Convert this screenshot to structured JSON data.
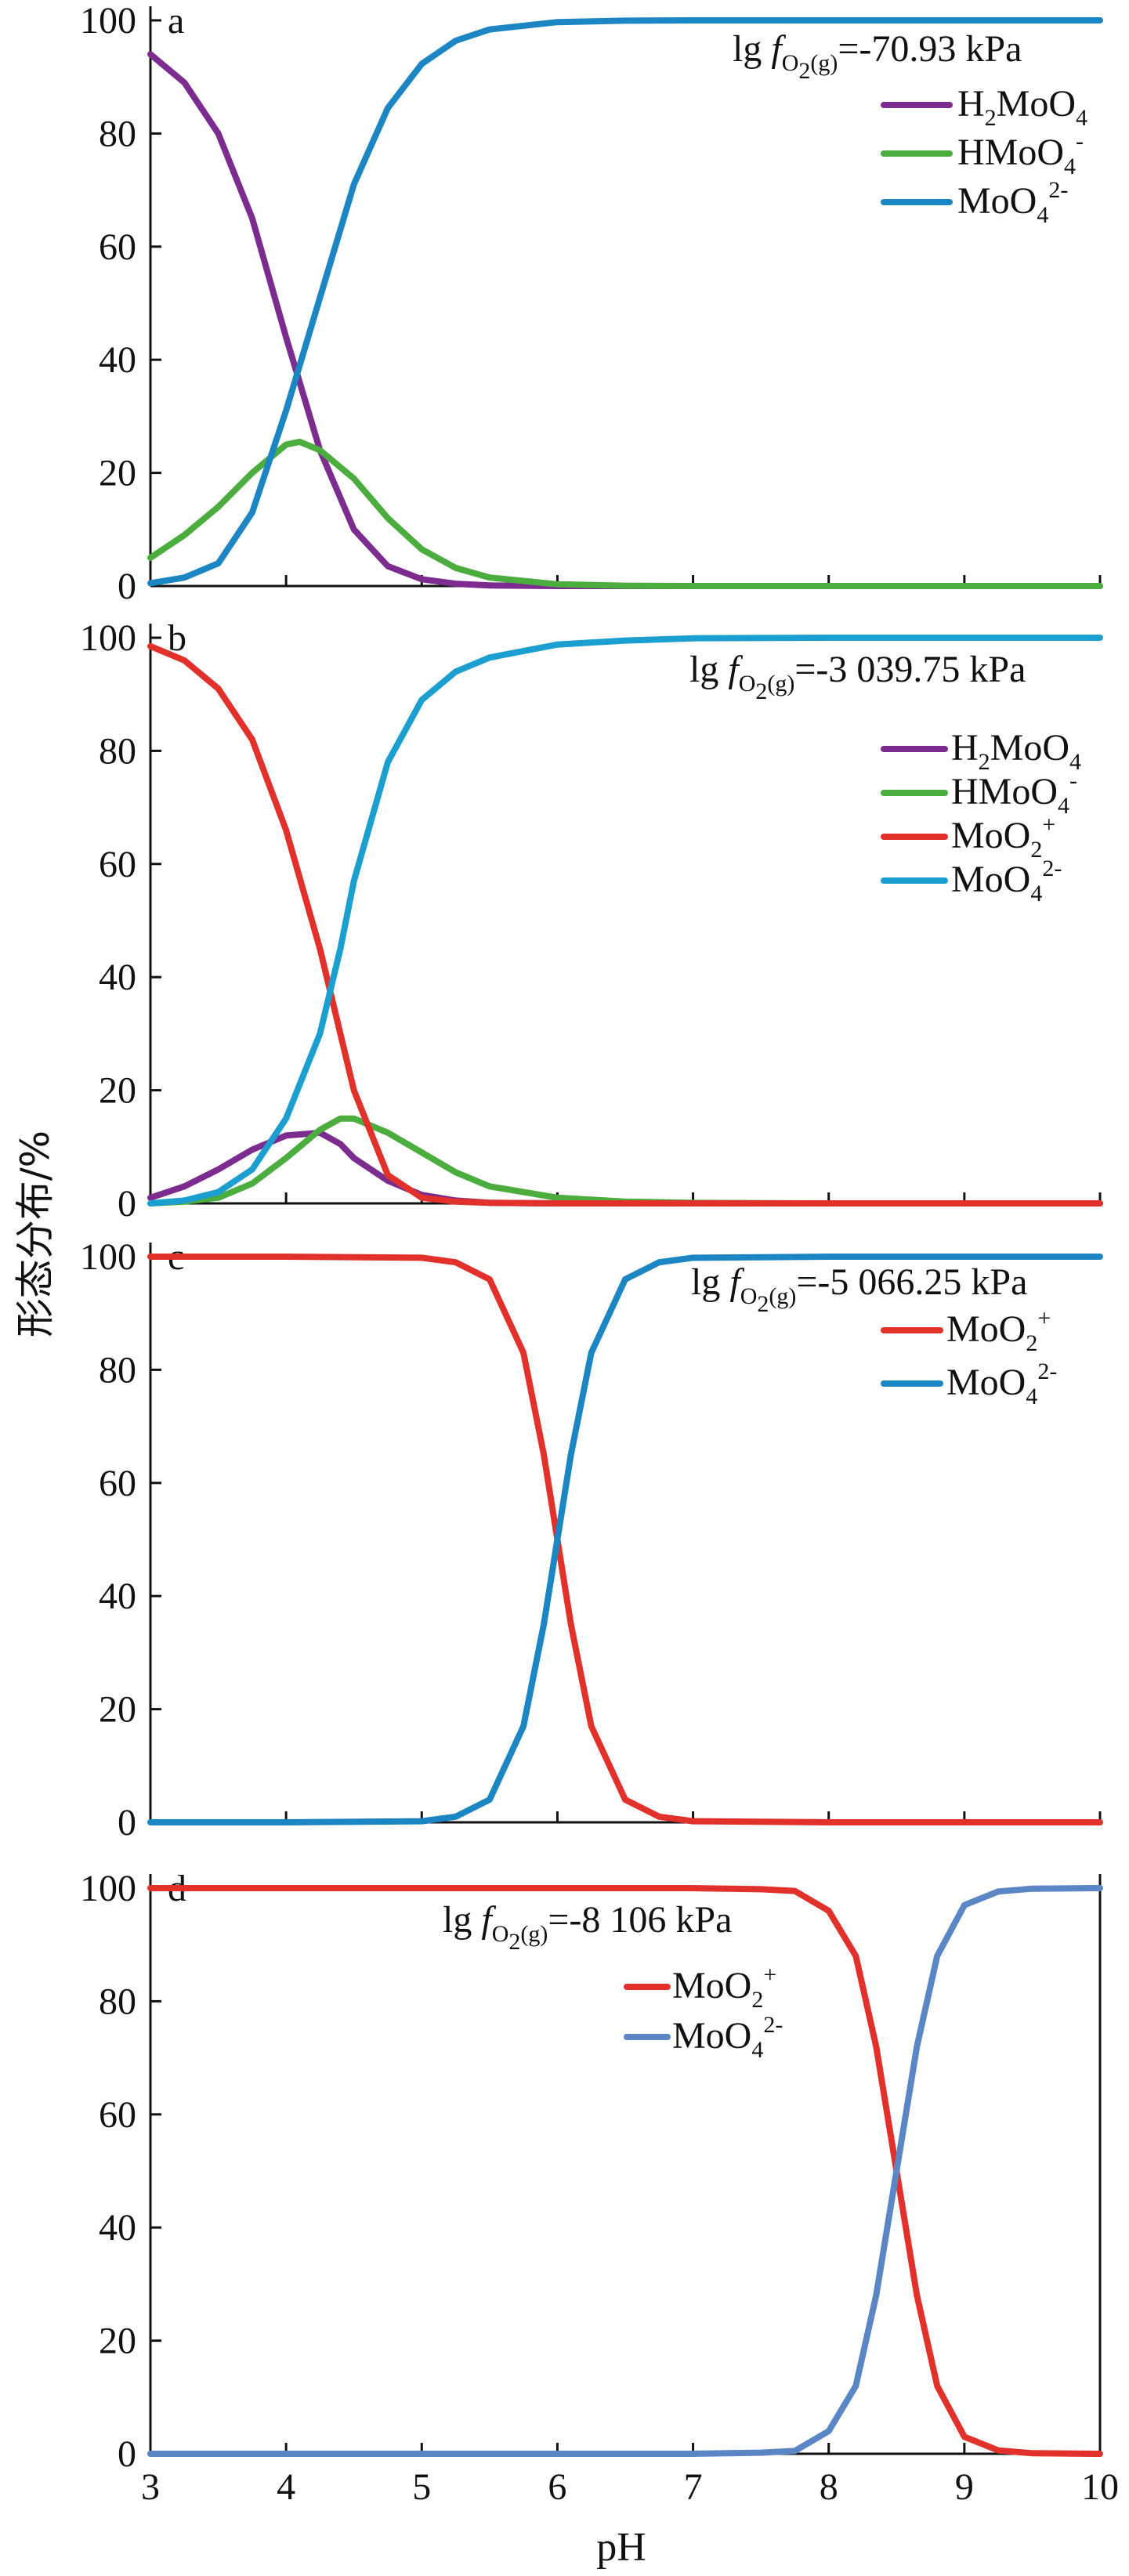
{
  "figure": {
    "ylabel": "形态分布/%",
    "xlabel": "pH"
  },
  "chart_data": [
    {
      "type": "line",
      "panel": "a",
      "annotation": {
        "prefix": "lg ",
        "f": "f",
        "sub1": "O",
        "sub2": "2",
        "sub3": "(g)",
        "value": "=-70.93 kPa"
      },
      "xlim": [
        3,
        10
      ],
      "ylim": [
        0,
        100
      ],
      "xticks": [
        "3",
        "4",
        "5",
        "6",
        "7",
        "8",
        "9",
        "10"
      ],
      "yticks": [
        "0",
        "20",
        "40",
        "60",
        "80",
        "100"
      ],
      "show_x_ticklabels": false,
      "legend_position": "top-right",
      "x": [
        3.0,
        3.25,
        3.5,
        3.75,
        4.0,
        4.1,
        4.25,
        4.5,
        4.75,
        5.0,
        5.25,
        5.5,
        6.0,
        6.5,
        7.0,
        7.5,
        8.0,
        9.0,
        10.0
      ],
      "series": [
        {
          "name_parts": [
            "H",
            "2",
            "MoO",
            "4",
            ""
          ],
          "color": "#7b2c8e",
          "values": [
            94,
            89,
            80,
            65,
            44,
            36,
            24,
            10,
            3.5,
            1.2,
            0.4,
            0.1,
            0,
            0,
            0,
            0,
            0,
            0,
            0
          ]
        },
        {
          "name_parts": [
            "HMoO",
            "4",
            "-"
          ],
          "color": "#4aad3e",
          "values": [
            5,
            9,
            14,
            20,
            25,
            25.5,
            24,
            19,
            12,
            6.5,
            3.2,
            1.5,
            0.3,
            0.05,
            0,
            0,
            0,
            0,
            0
          ]
        },
        {
          "name_parts": [
            "MoO",
            "4",
            "2-"
          ],
          "color": "#1b86c3",
          "values": [
            0.5,
            1.5,
            4,
            13,
            31,
            39,
            51,
            71,
            84.5,
            92.3,
            96.4,
            98.4,
            99.7,
            99.95,
            100,
            100,
            100,
            100,
            100
          ]
        }
      ]
    },
    {
      "type": "line",
      "panel": "b",
      "annotation": {
        "prefix": "lg ",
        "f": "f",
        "sub1": "O",
        "sub2": "2",
        "sub3": "(g)",
        "value": "=-3 039.75 kPa"
      },
      "xlim": [
        3,
        10
      ],
      "ylim": [
        0,
        100
      ],
      "xticks": [
        "3",
        "4",
        "5",
        "6",
        "7",
        "8",
        "9",
        "10"
      ],
      "yticks": [
        "0",
        "20",
        "40",
        "60",
        "80",
        "100"
      ],
      "show_x_ticklabels": false,
      "legend_position": "right",
      "x": [
        3.0,
        3.25,
        3.5,
        3.75,
        4.0,
        4.25,
        4.4,
        4.5,
        4.75,
        5.0,
        5.25,
        5.5,
        6.0,
        6.5,
        7.0,
        8.0,
        9.0,
        10.0
      ],
      "series": [
        {
          "name_parts": [
            "H",
            "2",
            "MoO",
            "4",
            ""
          ],
          "color": "#7b2c8e",
          "values": [
            1,
            3,
            6,
            9.5,
            12,
            12.5,
            10.5,
            8,
            4,
            1.5,
            0.5,
            0.1,
            0,
            0,
            0,
            0,
            0,
            0
          ]
        },
        {
          "name_parts": [
            "HMoO",
            "4",
            "-"
          ],
          "color": "#4aad3e",
          "values": [
            0,
            0.3,
            1,
            3.5,
            8,
            13,
            15,
            15,
            12.5,
            9,
            5.5,
            3,
            1,
            0.3,
            0.1,
            0,
            0,
            0
          ]
        },
        {
          "name_parts": [
            "MoO",
            "2",
            "+"
          ],
          "color": "#e2302b",
          "values": [
            98.5,
            96,
            91,
            82,
            66,
            45,
            30,
            20,
            5,
            1,
            0.3,
            0.1,
            0,
            0,
            0,
            0,
            0,
            0
          ]
        },
        {
          "name_parts": [
            "MoO",
            "4",
            "2-"
          ],
          "color": "#1b9fd0",
          "values": [
            0,
            0.5,
            2,
            6,
            15,
            30,
            45,
            57,
            78,
            89,
            94,
            96.5,
            98.8,
            99.5,
            99.9,
            100,
            100,
            100
          ]
        }
      ]
    },
    {
      "type": "line",
      "panel": "c",
      "annotation": {
        "prefix": "lg ",
        "f": "f",
        "sub1": "O",
        "sub2": "2",
        "sub3": "(g)",
        "value": "=-5 066.25 kPa"
      },
      "xlim": [
        3,
        10
      ],
      "ylim": [
        0,
        100
      ],
      "xticks": [
        "3",
        "4",
        "5",
        "6",
        "7",
        "8",
        "9",
        "10"
      ],
      "yticks": [
        "0",
        "20",
        "40",
        "60",
        "80",
        "100"
      ],
      "show_x_ticklabels": false,
      "legend_position": "top-right",
      "x": [
        3.0,
        4.0,
        5.0,
        5.25,
        5.5,
        5.75,
        5.9,
        6.0,
        6.1,
        6.25,
        6.5,
        6.75,
        7.0,
        8.0,
        9.0,
        10.0
      ],
      "series": [
        {
          "name_parts": [
            "MoO",
            "2",
            "+"
          ],
          "color": "#e2302b",
          "values": [
            100,
            100,
            99.8,
            99,
            96,
            83,
            65,
            50,
            35,
            17,
            4,
            1,
            0.2,
            0,
            0,
            0
          ]
        },
        {
          "name_parts": [
            "MoO",
            "4",
            "2-"
          ],
          "color": "#1b86c3",
          "values": [
            0,
            0,
            0.2,
            1,
            4,
            17,
            35,
            50,
            65,
            83,
            96,
            99,
            99.8,
            100,
            100,
            100
          ]
        }
      ]
    },
    {
      "type": "line",
      "panel": "d",
      "annotation": {
        "prefix": "lg ",
        "f": "f",
        "sub1": "O",
        "sub2": "2",
        "sub3": "(g)",
        "value": "=-8 106 kPa"
      },
      "xlim": [
        3,
        10
      ],
      "ylim": [
        0,
        100
      ],
      "xticks": [
        "3",
        "4",
        "5",
        "6",
        "7",
        "8",
        "9",
        "10"
      ],
      "yticks": [
        "0",
        "20",
        "40",
        "60",
        "80",
        "100"
      ],
      "show_x_ticklabels": true,
      "legend_position": "center",
      "x": [
        3.0,
        5.0,
        7.0,
        7.5,
        7.75,
        8.0,
        8.2,
        8.35,
        8.5,
        8.65,
        8.8,
        9.0,
        9.25,
        9.5,
        10.0
      ],
      "series": [
        {
          "name_parts": [
            "MoO",
            "2",
            "+"
          ],
          "color": "#e2302b",
          "values": [
            100,
            100,
            100,
            99.8,
            99.5,
            96,
            88,
            72,
            50,
            28,
            12,
            3,
            0.6,
            0.1,
            0
          ]
        },
        {
          "name_parts": [
            "MoO",
            "4",
            "2-"
          ],
          "color": "#5a86c5",
          "values": [
            0,
            0,
            0,
            0.2,
            0.5,
            4,
            12,
            28,
            50,
            72,
            88,
            97,
            99.4,
            99.9,
            100
          ]
        }
      ]
    }
  ]
}
